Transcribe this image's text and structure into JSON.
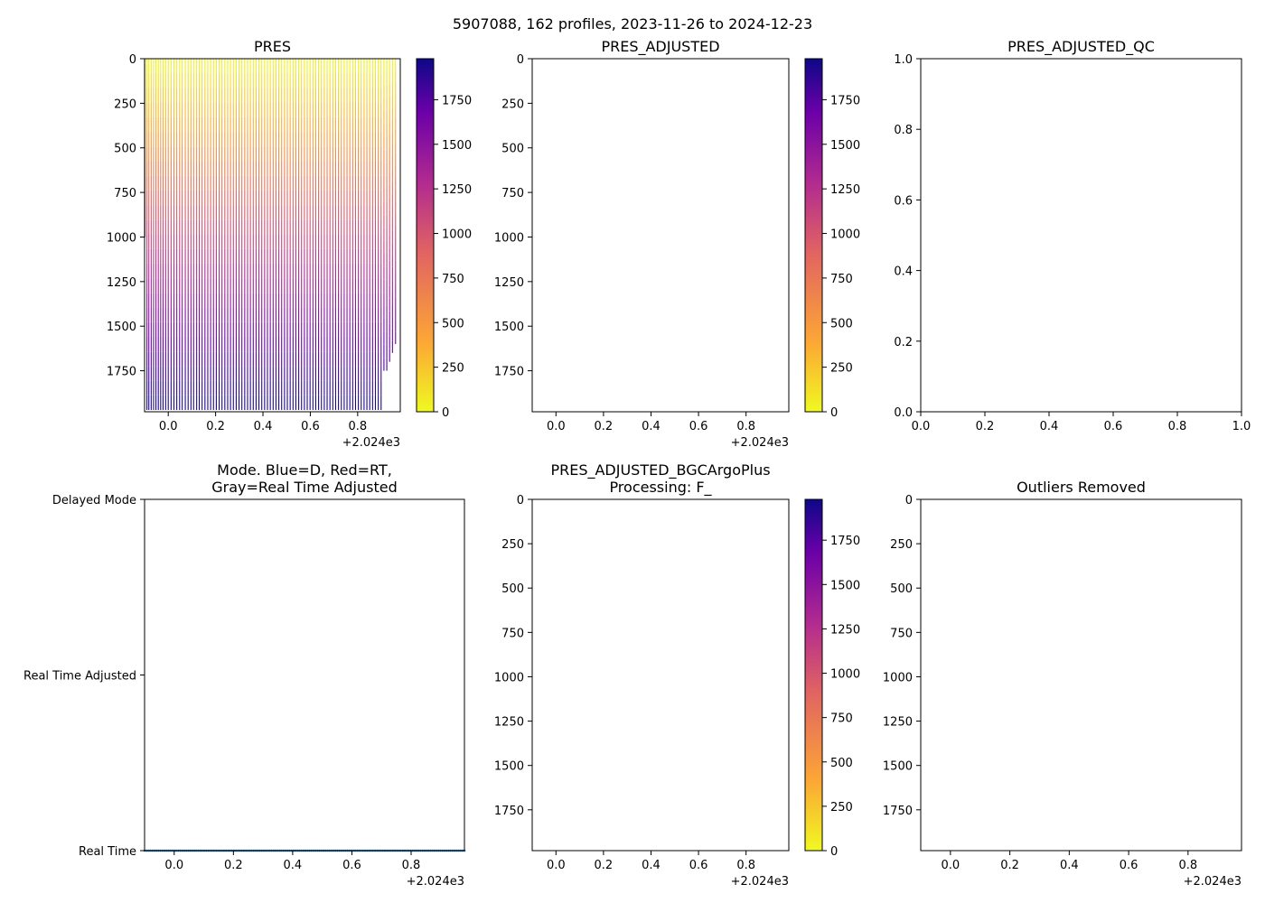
{
  "figure": {
    "suptitle": "5907088, 162 profiles, 2023-11-26 to 2024-12-23",
    "offset_label": "+2.024e3",
    "colormap": [
      "#f0f921",
      "#fca636",
      "#e16462",
      "#b12a90",
      "#6a00a8",
      "#0d0887"
    ]
  },
  "chart_data": [
    {
      "id": "pres",
      "type": "line",
      "title": "PRES",
      "xlabel": "",
      "ylabel": "",
      "xlim": [
        -0.1,
        0.98
      ],
      "ylim": [
        1980,
        0
      ],
      "xticks": [
        0.0,
        0.2,
        0.4,
        0.6,
        0.8
      ],
      "xtick_labels": [
        "0.0",
        "0.2",
        "0.4",
        "0.6",
        "0.8"
      ],
      "yticks": [
        0,
        250,
        500,
        750,
        1000,
        1250,
        1500,
        1750
      ],
      "ytick_labels": [
        "0",
        "250",
        "500",
        "750",
        "1000",
        "1250",
        "1500",
        "1750"
      ],
      "colorbar": {
        "min": 0,
        "max": 1980,
        "ticks": [
          0,
          250,
          500,
          750,
          1000,
          1250,
          1500,
          1750
        ],
        "labels": [
          "0",
          "250",
          "500",
          "750",
          "1000",
          "1250",
          "1500",
          "1750"
        ]
      },
      "profiles": {
        "x": [
          -0.098,
          -0.09,
          -0.082,
          -0.072,
          -0.062,
          -0.052,
          -0.042,
          -0.032,
          -0.022,
          -0.011,
          0.0,
          0.012,
          0.024,
          0.036,
          0.048,
          0.059,
          0.072,
          0.084,
          0.096,
          0.107,
          0.12,
          0.131,
          0.143,
          0.155,
          0.167,
          0.179,
          0.191,
          0.203,
          0.215,
          0.227,
          0.239,
          0.251,
          0.263,
          0.275,
          0.287,
          0.299,
          0.311,
          0.323,
          0.335,
          0.347,
          0.359,
          0.371,
          0.383,
          0.395,
          0.407,
          0.419,
          0.431,
          0.443,
          0.455,
          0.467,
          0.479,
          0.491,
          0.503,
          0.515,
          0.527,
          0.539,
          0.551,
          0.563,
          0.575,
          0.587,
          0.599,
          0.611,
          0.623,
          0.635,
          0.647,
          0.659,
          0.671,
          0.683,
          0.695,
          0.707,
          0.719,
          0.731,
          0.743,
          0.755,
          0.767,
          0.779,
          0.791,
          0.803,
          0.815,
          0.827,
          0.839,
          0.851,
          0.863,
          0.875,
          0.887,
          0.899,
          0.911,
          0.923,
          0.935,
          0.947,
          0.96
        ],
        "max_pres": [
          1000,
          1970,
          1970,
          1970,
          1970,
          1970,
          1970,
          1970,
          1970,
          1970,
          1970,
          1970,
          1970,
          1970,
          1970,
          1970,
          1970,
          1970,
          1970,
          1970,
          1970,
          1970,
          1970,
          1970,
          1970,
          1970,
          1970,
          1970,
          1970,
          1970,
          1970,
          1970,
          1970,
          1970,
          1970,
          1970,
          1970,
          1970,
          1970,
          1970,
          1970,
          1970,
          1970,
          1970,
          1970,
          1970,
          1970,
          1970,
          1970,
          1970,
          1970,
          1970,
          1970,
          1970,
          1970,
          1970,
          1970,
          1970,
          1970,
          1970,
          1970,
          1970,
          1970,
          1970,
          1970,
          1970,
          1970,
          1970,
          1970,
          1970,
          1970,
          1970,
          1970,
          1970,
          1970,
          1970,
          1970,
          1970,
          1970,
          1970,
          1970,
          1970,
          1970,
          1970,
          1970,
          1970,
          1750,
          1750,
          1700,
          1650,
          1600
        ]
      }
    },
    {
      "id": "pres_adjusted",
      "type": "line",
      "title": "PRES_ADJUSTED",
      "xlim": [
        -0.1,
        0.98
      ],
      "ylim": [
        1980,
        0
      ],
      "xticks": [
        0.0,
        0.2,
        0.4,
        0.6,
        0.8
      ],
      "xtick_labels": [
        "0.0",
        "0.2",
        "0.4",
        "0.6",
        "0.8"
      ],
      "yticks": [
        0,
        250,
        500,
        750,
        1000,
        1250,
        1500,
        1750
      ],
      "ytick_labels": [
        "0",
        "250",
        "500",
        "750",
        "1000",
        "1250",
        "1500",
        "1750"
      ],
      "colorbar": {
        "min": 0,
        "max": 1980,
        "ticks": [
          0,
          250,
          500,
          750,
          1000,
          1250,
          1500,
          1750
        ],
        "labels": [
          "0",
          "250",
          "500",
          "750",
          "1000",
          "1250",
          "1500",
          "1750"
        ]
      }
    },
    {
      "id": "pres_adjusted_qc",
      "type": "scatter",
      "title": "PRES_ADJUSTED_QC",
      "xlim": [
        0,
        1
      ],
      "ylim": [
        0,
        1
      ],
      "xticks": [
        0.0,
        0.2,
        0.4,
        0.6,
        0.8,
        1.0
      ],
      "xtick_labels": [
        "0.0",
        "0.2",
        "0.4",
        "0.6",
        "0.8",
        "1.0"
      ],
      "yticks": [
        0.0,
        0.2,
        0.4,
        0.6,
        0.8,
        1.0
      ],
      "ytick_labels": [
        "0.0",
        "0.2",
        "0.4",
        "0.6",
        "0.8",
        "1.0"
      ]
    },
    {
      "id": "mode",
      "type": "scatter",
      "title": "Mode. Blue=D, Red=RT,\nGray=Real Time Adjusted",
      "xlim": [
        -0.1,
        0.98
      ],
      "ylim": [
        0,
        2
      ],
      "xticks": [
        0.0,
        0.2,
        0.4,
        0.6,
        0.8
      ],
      "xtick_labels": [
        "0.0",
        "0.2",
        "0.4",
        "0.6",
        "0.8"
      ],
      "yticks": [
        2,
        1,
        0
      ],
      "ytick_labels": [
        "Delayed Mode",
        "Real Time Adjusted",
        "Real Time"
      ],
      "points": {
        "y": 0,
        "count": 162,
        "x_start": -0.1,
        "x_end": 0.98,
        "color": "#1f77b4"
      }
    },
    {
      "id": "bgcargoplus",
      "type": "line",
      "title": "PRES_ADJUSTED_BGCArgoPlus\nProcessing: F_",
      "xlim": [
        -0.1,
        0.98
      ],
      "ylim": [
        1980,
        0
      ],
      "xticks": [
        0.0,
        0.2,
        0.4,
        0.6,
        0.8
      ],
      "xtick_labels": [
        "0.0",
        "0.2",
        "0.4",
        "0.6",
        "0.8"
      ],
      "yticks": [
        0,
        250,
        500,
        750,
        1000,
        1250,
        1500,
        1750
      ],
      "ytick_labels": [
        "0",
        "250",
        "500",
        "750",
        "1000",
        "1250",
        "1500",
        "1750"
      ],
      "colorbar": {
        "min": 0,
        "max": 1980,
        "ticks": [
          0,
          250,
          500,
          750,
          1000,
          1250,
          1500,
          1750
        ],
        "labels": [
          "0",
          "250",
          "500",
          "750",
          "1000",
          "1250",
          "1500",
          "1750"
        ]
      }
    },
    {
      "id": "outliers",
      "type": "line",
      "title": "Outliers Removed",
      "xlim": [
        -0.1,
        0.98
      ],
      "ylim": [
        1980,
        0
      ],
      "xticks": [
        0.0,
        0.2,
        0.4,
        0.6,
        0.8
      ],
      "xtick_labels": [
        "0.0",
        "0.2",
        "0.4",
        "0.6",
        "0.8"
      ],
      "yticks": [
        0,
        250,
        500,
        750,
        1000,
        1250,
        1500,
        1750
      ],
      "ytick_labels": [
        "0",
        "250",
        "500",
        "750",
        "1000",
        "1250",
        "1500",
        "1750"
      ]
    }
  ]
}
